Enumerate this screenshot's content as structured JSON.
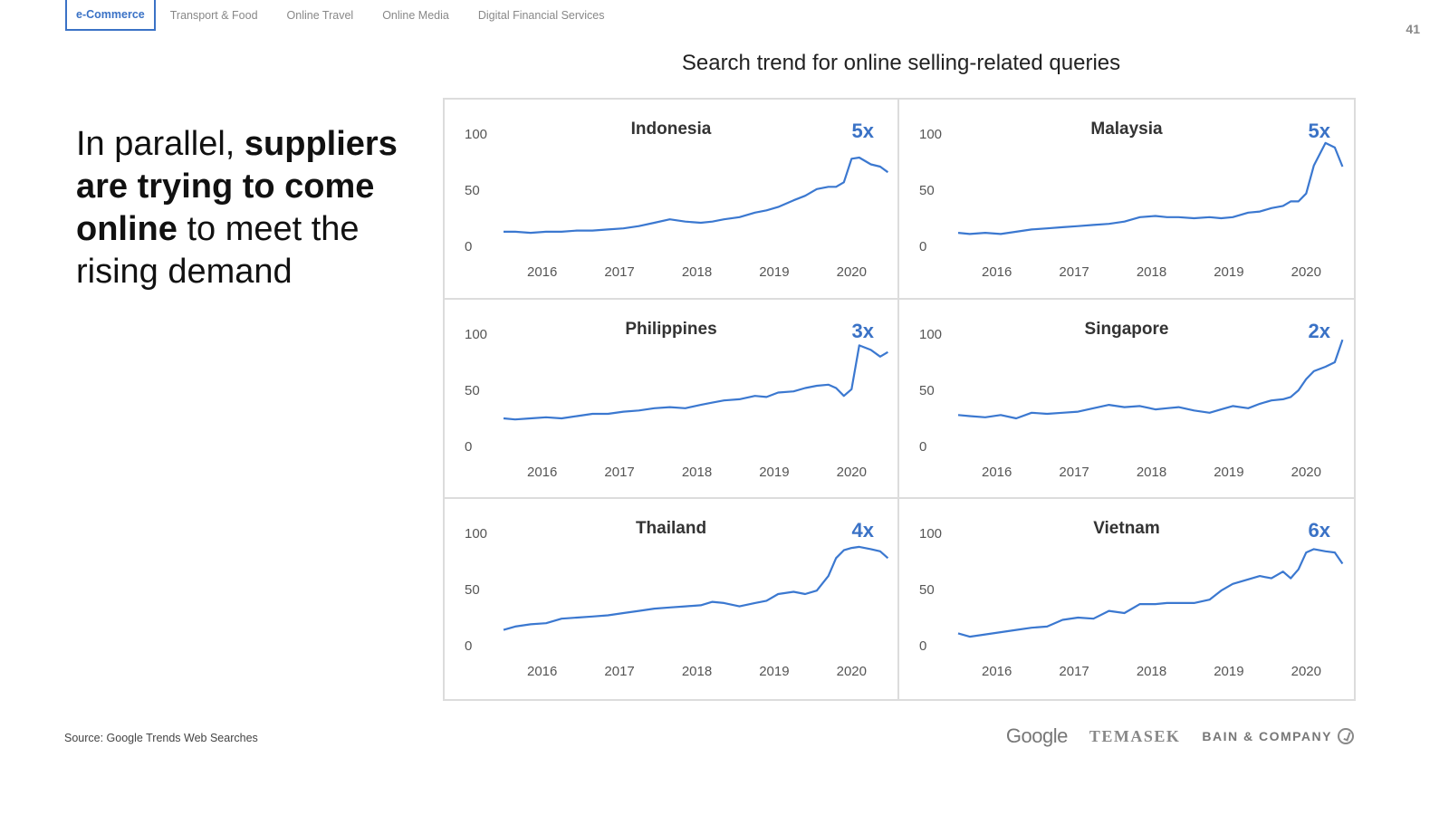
{
  "tabs": [
    {
      "label": "e-Commerce",
      "active": true
    },
    {
      "label": "Transport & Food",
      "active": false
    },
    {
      "label": "Online Travel",
      "active": false
    },
    {
      "label": "Online Media",
      "active": false
    },
    {
      "label": "Digital Financial Services",
      "active": false
    }
  ],
  "page_number": "41",
  "headline": {
    "part1": "In parallel, ",
    "bold": "suppliers are trying to come online",
    "part2": " to meet the rising demand"
  },
  "source": "Source: Google Trends Web Searches",
  "logos": {
    "google": "Google",
    "temasek": "TEMASEK",
    "bain": "BAIN & COMPANY"
  },
  "colors": {
    "accent": "#3a72c6",
    "line": "#3b78d0",
    "border": "#dcdcdc"
  },
  "chart_data": {
    "type": "line",
    "title": "Search trend for online selling-related queries",
    "x_ticks": [
      "2016",
      "2017",
      "2018",
      "2019",
      "2020"
    ],
    "y_ticks": [
      0,
      50,
      100
    ],
    "ylim": [
      0,
      100
    ],
    "xlim": [
      2015.75,
      2020.75
    ],
    "grid": false,
    "panels": [
      {
        "country": "Indonesia",
        "multiplier": "5x",
        "x": [
          2015.75,
          2015.9,
          2016.1,
          2016.3,
          2016.5,
          2016.7,
          2016.9,
          2017.1,
          2017.3,
          2017.5,
          2017.7,
          2017.9,
          2018.1,
          2018.3,
          2018.45,
          2018.6,
          2018.8,
          2019.0,
          2019.15,
          2019.3,
          2019.5,
          2019.65,
          2019.8,
          2019.95,
          2020.05,
          2020.15,
          2020.25,
          2020.35,
          2020.5,
          2020.62,
          2020.72
        ],
        "y": [
          13,
          13,
          12,
          13,
          13,
          14,
          14,
          15,
          16,
          18,
          21,
          24,
          22,
          21,
          22,
          24,
          26,
          30,
          32,
          35,
          41,
          45,
          51,
          53,
          53,
          57,
          78,
          79,
          73,
          71,
          66
        ]
      },
      {
        "country": "Malaysia",
        "multiplier": "5x",
        "x": [
          2015.75,
          2015.9,
          2016.1,
          2016.3,
          2016.5,
          2016.7,
          2016.9,
          2017.1,
          2017.3,
          2017.5,
          2017.7,
          2017.9,
          2018.1,
          2018.3,
          2018.45,
          2018.6,
          2018.8,
          2019.0,
          2019.15,
          2019.3,
          2019.5,
          2019.65,
          2019.8,
          2019.95,
          2020.05,
          2020.15,
          2020.25,
          2020.35,
          2020.5,
          2020.62,
          2020.72
        ],
        "y": [
          12,
          11,
          12,
          11,
          13,
          15,
          16,
          17,
          18,
          19,
          20,
          22,
          26,
          27,
          26,
          26,
          25,
          26,
          25,
          26,
          30,
          31,
          34,
          36,
          40,
          40,
          47,
          72,
          92,
          88,
          71
        ]
      },
      {
        "country": "Philippines",
        "multiplier": "3x",
        "x": [
          2015.75,
          2015.9,
          2016.1,
          2016.3,
          2016.5,
          2016.7,
          2016.9,
          2017.1,
          2017.3,
          2017.5,
          2017.7,
          2017.9,
          2018.1,
          2018.3,
          2018.45,
          2018.6,
          2018.8,
          2019.0,
          2019.15,
          2019.3,
          2019.5,
          2019.65,
          2019.8,
          2019.95,
          2020.05,
          2020.15,
          2020.25,
          2020.35,
          2020.5,
          2020.62,
          2020.72
        ],
        "y": [
          25,
          24,
          25,
          26,
          25,
          27,
          29,
          29,
          31,
          32,
          34,
          35,
          34,
          37,
          39,
          41,
          42,
          45,
          44,
          48,
          49,
          52,
          54,
          55,
          52,
          45,
          51,
          90,
          86,
          80,
          84
        ]
      },
      {
        "country": "Singapore",
        "multiplier": "2x",
        "x": [
          2015.75,
          2015.9,
          2016.1,
          2016.3,
          2016.5,
          2016.7,
          2016.9,
          2017.1,
          2017.3,
          2017.5,
          2017.7,
          2017.9,
          2018.1,
          2018.3,
          2018.45,
          2018.6,
          2018.8,
          2019.0,
          2019.15,
          2019.3,
          2019.5,
          2019.65,
          2019.8,
          2019.95,
          2020.05,
          2020.15,
          2020.25,
          2020.35,
          2020.5,
          2020.62,
          2020.72
        ],
        "y": [
          28,
          27,
          26,
          28,
          25,
          30,
          29,
          30,
          31,
          34,
          37,
          35,
          36,
          33,
          34,
          35,
          32,
          30,
          33,
          36,
          34,
          38,
          41,
          42,
          44,
          50,
          60,
          67,
          71,
          75,
          95
        ]
      },
      {
        "country": "Thailand",
        "multiplier": "4x",
        "x": [
          2015.75,
          2015.9,
          2016.1,
          2016.3,
          2016.5,
          2016.7,
          2016.9,
          2017.1,
          2017.3,
          2017.5,
          2017.7,
          2017.9,
          2018.1,
          2018.3,
          2018.45,
          2018.6,
          2018.8,
          2019.0,
          2019.15,
          2019.3,
          2019.5,
          2019.65,
          2019.8,
          2019.95,
          2020.05,
          2020.15,
          2020.25,
          2020.35,
          2020.5,
          2020.62,
          2020.72
        ],
        "y": [
          14,
          17,
          19,
          20,
          24,
          25,
          26,
          27,
          29,
          31,
          33,
          34,
          35,
          36,
          39,
          38,
          35,
          38,
          40,
          46,
          48,
          46,
          49,
          62,
          78,
          85,
          87,
          88,
          86,
          84,
          78
        ]
      },
      {
        "country": "Vietnam",
        "multiplier": "6x",
        "x": [
          2015.75,
          2015.9,
          2016.1,
          2016.3,
          2016.5,
          2016.7,
          2016.9,
          2017.1,
          2017.3,
          2017.5,
          2017.7,
          2017.9,
          2018.1,
          2018.3,
          2018.45,
          2018.6,
          2018.8,
          2019.0,
          2019.15,
          2019.3,
          2019.5,
          2019.65,
          2019.8,
          2019.95,
          2020.05,
          2020.15,
          2020.25,
          2020.35,
          2020.5,
          2020.62,
          2020.72
        ],
        "y": [
          11,
          8,
          10,
          12,
          14,
          16,
          17,
          23,
          25,
          24,
          31,
          29,
          37,
          37,
          38,
          38,
          38,
          41,
          49,
          55,
          59,
          62,
          60,
          66,
          60,
          68,
          83,
          86,
          84,
          83,
          73
        ]
      }
    ]
  }
}
